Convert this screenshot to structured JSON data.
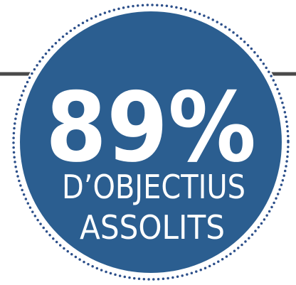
{
  "badge": {
    "value": "89%",
    "lines": [
      "D’OBJECTIUS",
      "ASSOLITS"
    ]
  }
}
